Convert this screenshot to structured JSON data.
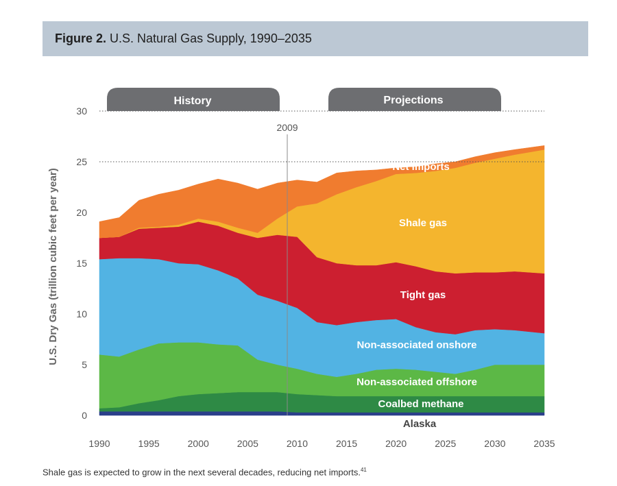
{
  "figure": {
    "number_label": "Figure 2.",
    "title": "U.S. Natural Gas Supply, 1990–2035",
    "caption": "Shale gas is expected to grow in the next several decades, reducing net imports.",
    "caption_ref": "41"
  },
  "chart_data": {
    "type": "area",
    "stacked": true,
    "title": "U.S. Natural Gas Supply, 1990–2035",
    "xlabel": "",
    "ylabel": "U.S. Dry Gas (trillion cubic feet per year)",
    "xlim": [
      1990,
      2035
    ],
    "ylim": [
      0,
      30
    ],
    "xticks": [
      1990,
      1995,
      2000,
      2005,
      2010,
      2015,
      2020,
      2025,
      2030,
      2035
    ],
    "yticks": [
      0,
      5,
      10,
      15,
      20,
      25,
      30
    ],
    "grid": "dotted lines at 25 and 30",
    "divider": {
      "x": 2009,
      "label": "2009"
    },
    "period_labels": {
      "history": "History",
      "projections": "Projections"
    },
    "x": [
      1990,
      1992,
      1994,
      1996,
      1998,
      2000,
      2002,
      2004,
      2006,
      2008,
      2010,
      2012,
      2014,
      2016,
      2018,
      2020,
      2022,
      2024,
      2026,
      2028,
      2030,
      2032,
      2035
    ],
    "series": [
      {
        "name": "Alaska",
        "color": "#2b3f8a",
        "values": [
          0.4,
          0.4,
          0.4,
          0.4,
          0.4,
          0.4,
          0.4,
          0.4,
          0.4,
          0.4,
          0.3,
          0.3,
          0.3,
          0.3,
          0.3,
          0.3,
          0.3,
          0.3,
          0.3,
          0.3,
          0.3,
          0.3,
          0.3
        ]
      },
      {
        "name": "Coalbed methane",
        "color": "#2e8a45",
        "values": [
          0.3,
          0.4,
          0.8,
          1.1,
          1.5,
          1.7,
          1.8,
          1.9,
          1.9,
          1.9,
          1.8,
          1.7,
          1.6,
          1.6,
          1.6,
          1.6,
          1.6,
          1.6,
          1.6,
          1.6,
          1.6,
          1.6,
          1.6
        ]
      },
      {
        "name": "Non-associated offshore",
        "color": "#5cb846",
        "values": [
          5.3,
          5.0,
          5.3,
          5.6,
          5.3,
          5.1,
          4.8,
          4.6,
          3.2,
          2.7,
          2.5,
          2.1,
          1.9,
          2.2,
          2.6,
          2.7,
          2.6,
          2.4,
          2.2,
          2.6,
          3.1,
          3.1,
          3.1
        ]
      },
      {
        "name": "Non-associated onshore",
        "color": "#52b3e3",
        "values": [
          9.4,
          9.7,
          9.0,
          8.3,
          7.8,
          7.7,
          7.3,
          6.6,
          6.4,
          6.3,
          6.0,
          5.1,
          5.1,
          5.1,
          4.9,
          4.9,
          4.2,
          3.9,
          3.9,
          3.9,
          3.5,
          3.4,
          3.1
        ]
      },
      {
        "name": "Tight gas",
        "color": "#cc1f30",
        "values": [
          2.1,
          2.1,
          2.9,
          3.1,
          3.6,
          4.2,
          4.4,
          4.5,
          5.6,
          6.5,
          7.0,
          6.4,
          6.1,
          5.6,
          5.4,
          5.6,
          6.0,
          6.0,
          6.0,
          5.7,
          5.6,
          5.8,
          5.9
        ]
      },
      {
        "name": "Shale gas",
        "color": "#f4b52e",
        "values": [
          0.0,
          0.0,
          0.1,
          0.1,
          0.2,
          0.3,
          0.4,
          0.5,
          0.5,
          1.6,
          3.0,
          5.3,
          6.8,
          7.7,
          8.3,
          8.7,
          9.2,
          9.9,
          10.4,
          10.8,
          11.2,
          11.5,
          12.2
        ]
      },
      {
        "name": "Net imports",
        "color": "#f07c2f",
        "values": [
          1.6,
          1.9,
          2.7,
          3.2,
          3.4,
          3.4,
          4.2,
          4.4,
          4.3,
          3.5,
          2.6,
          2.1,
          2.1,
          1.6,
          1.1,
          0.6,
          0.6,
          0.7,
          0.6,
          0.6,
          0.6,
          0.5,
          0.4
        ]
      }
    ]
  }
}
